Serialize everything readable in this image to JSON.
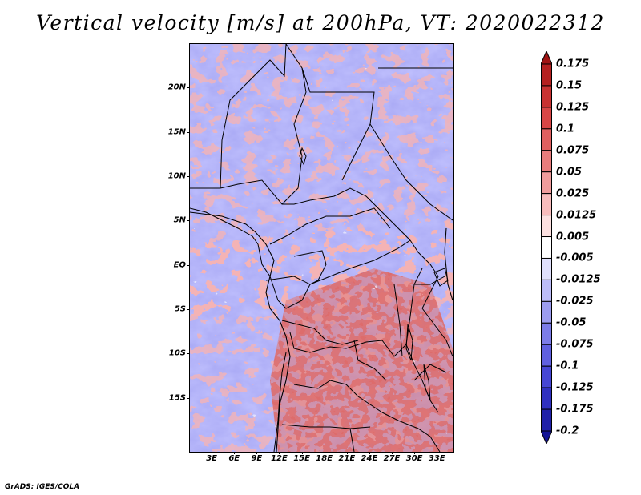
{
  "title": "Vertical velocity [m/s] at 200hPa, VT: 2020022312",
  "credit": "GrADS: IGES/COLA",
  "map": {
    "region": "Central Africa",
    "lon_range": [
      0,
      35
    ],
    "lat_range": [
      -21,
      25
    ],
    "lat_labels": [
      {
        "lat": 20,
        "text": "20N"
      },
      {
        "lat": 15,
        "text": "15N"
      },
      {
        "lat": 10,
        "text": "10N"
      },
      {
        "lat": 5,
        "text": "5N"
      },
      {
        "lat": 0,
        "text": "EQ"
      },
      {
        "lat": -5,
        "text": "5S"
      },
      {
        "lat": -10,
        "text": "10S"
      },
      {
        "lat": -15,
        "text": "15S"
      }
    ],
    "lon_labels": [
      {
        "lon": 3,
        "text": "3E"
      },
      {
        "lon": 6,
        "text": "6E"
      },
      {
        "lon": 9,
        "text": "9E"
      },
      {
        "lon": 12,
        "text": "12E"
      },
      {
        "lon": 15,
        "text": "15E"
      },
      {
        "lon": 18,
        "text": "18E"
      },
      {
        "lon": 21,
        "text": "21E"
      },
      {
        "lon": 24,
        "text": "24E"
      },
      {
        "lon": 27,
        "text": "27E"
      },
      {
        "lon": 30,
        "text": "30E"
      },
      {
        "lon": 33,
        "text": "33E"
      }
    ]
  },
  "colorbar": {
    "labels": [
      "0.175",
      "0.15",
      "0.125",
      "0.1",
      "0.075",
      "0.05",
      "0.025",
      "0.0125",
      "0.005",
      "-0.005",
      "-0.0125",
      "-0.025",
      "-0.05",
      "-0.075",
      "-0.1",
      "-0.125",
      "-0.175",
      "-0.2"
    ],
    "colors": [
      "#a01414",
      "#b42020",
      "#c83232",
      "#d84646",
      "#e06060",
      "#e87c7c",
      "#f09c9c",
      "#f8bcbc",
      "#fce0e0",
      "#ffffff",
      "#e0e0fc",
      "#bcbcf8",
      "#9c9cf0",
      "#7c7ce8",
      "#6060e0",
      "#4646d4",
      "#3030c0",
      "#2020a8",
      "#141496"
    ]
  }
}
